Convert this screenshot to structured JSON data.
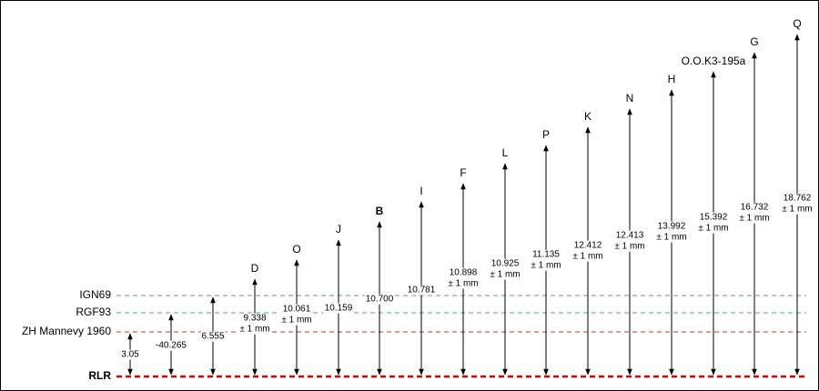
{
  "references": [
    {
      "label": "IGN69",
      "color": "#5a9e96",
      "bold": false
    },
    {
      "label": "RGF93",
      "color": "#5a9e96",
      "bold": false
    },
    {
      "label": "ZH Mannevy 1960",
      "color": "#c0392b",
      "bold": false
    },
    {
      "label": "RLR",
      "color": "#e00000",
      "bold": true
    }
  ],
  "markers": [
    {
      "value": "3.05"
    },
    {
      "value": "-40.265"
    },
    {
      "value": "6.555"
    },
    {
      "label": "D",
      "value": "9.338",
      "tolerance": "± 1 mm"
    },
    {
      "label": "O",
      "value": "10.061",
      "tolerance": "± 1 mm"
    },
    {
      "label": "J",
      "value": "10.159"
    },
    {
      "label": "B",
      "value": "10.700",
      "bold": true
    },
    {
      "label": "I",
      "value": "10.781"
    },
    {
      "label": "F",
      "value": "10.898",
      "tolerance": "± 1 mm"
    },
    {
      "label": "L",
      "value": "10.925",
      "tolerance": "± 1 mm"
    },
    {
      "label": "P",
      "value": "11.135",
      "tolerance": "± 1 mm"
    },
    {
      "label": "K",
      "value": "12.412",
      "tolerance": "± 1 mm"
    },
    {
      "label": "N",
      "value": "12.413",
      "tolerance": "± 1 mm"
    },
    {
      "label": "H",
      "value": "13.992",
      "tolerance": "± 1 mm"
    },
    {
      "label": "O.O.K3-195a",
      "value": "15.392",
      "tolerance": "± 1 mm"
    },
    {
      "label": "G",
      "value": "16.732",
      "tolerance": "± 1 mm"
    },
    {
      "label": "Q",
      "value": "18.762",
      "tolerance": "± 1 mm",
      "color": "#e00000"
    }
  ]
}
